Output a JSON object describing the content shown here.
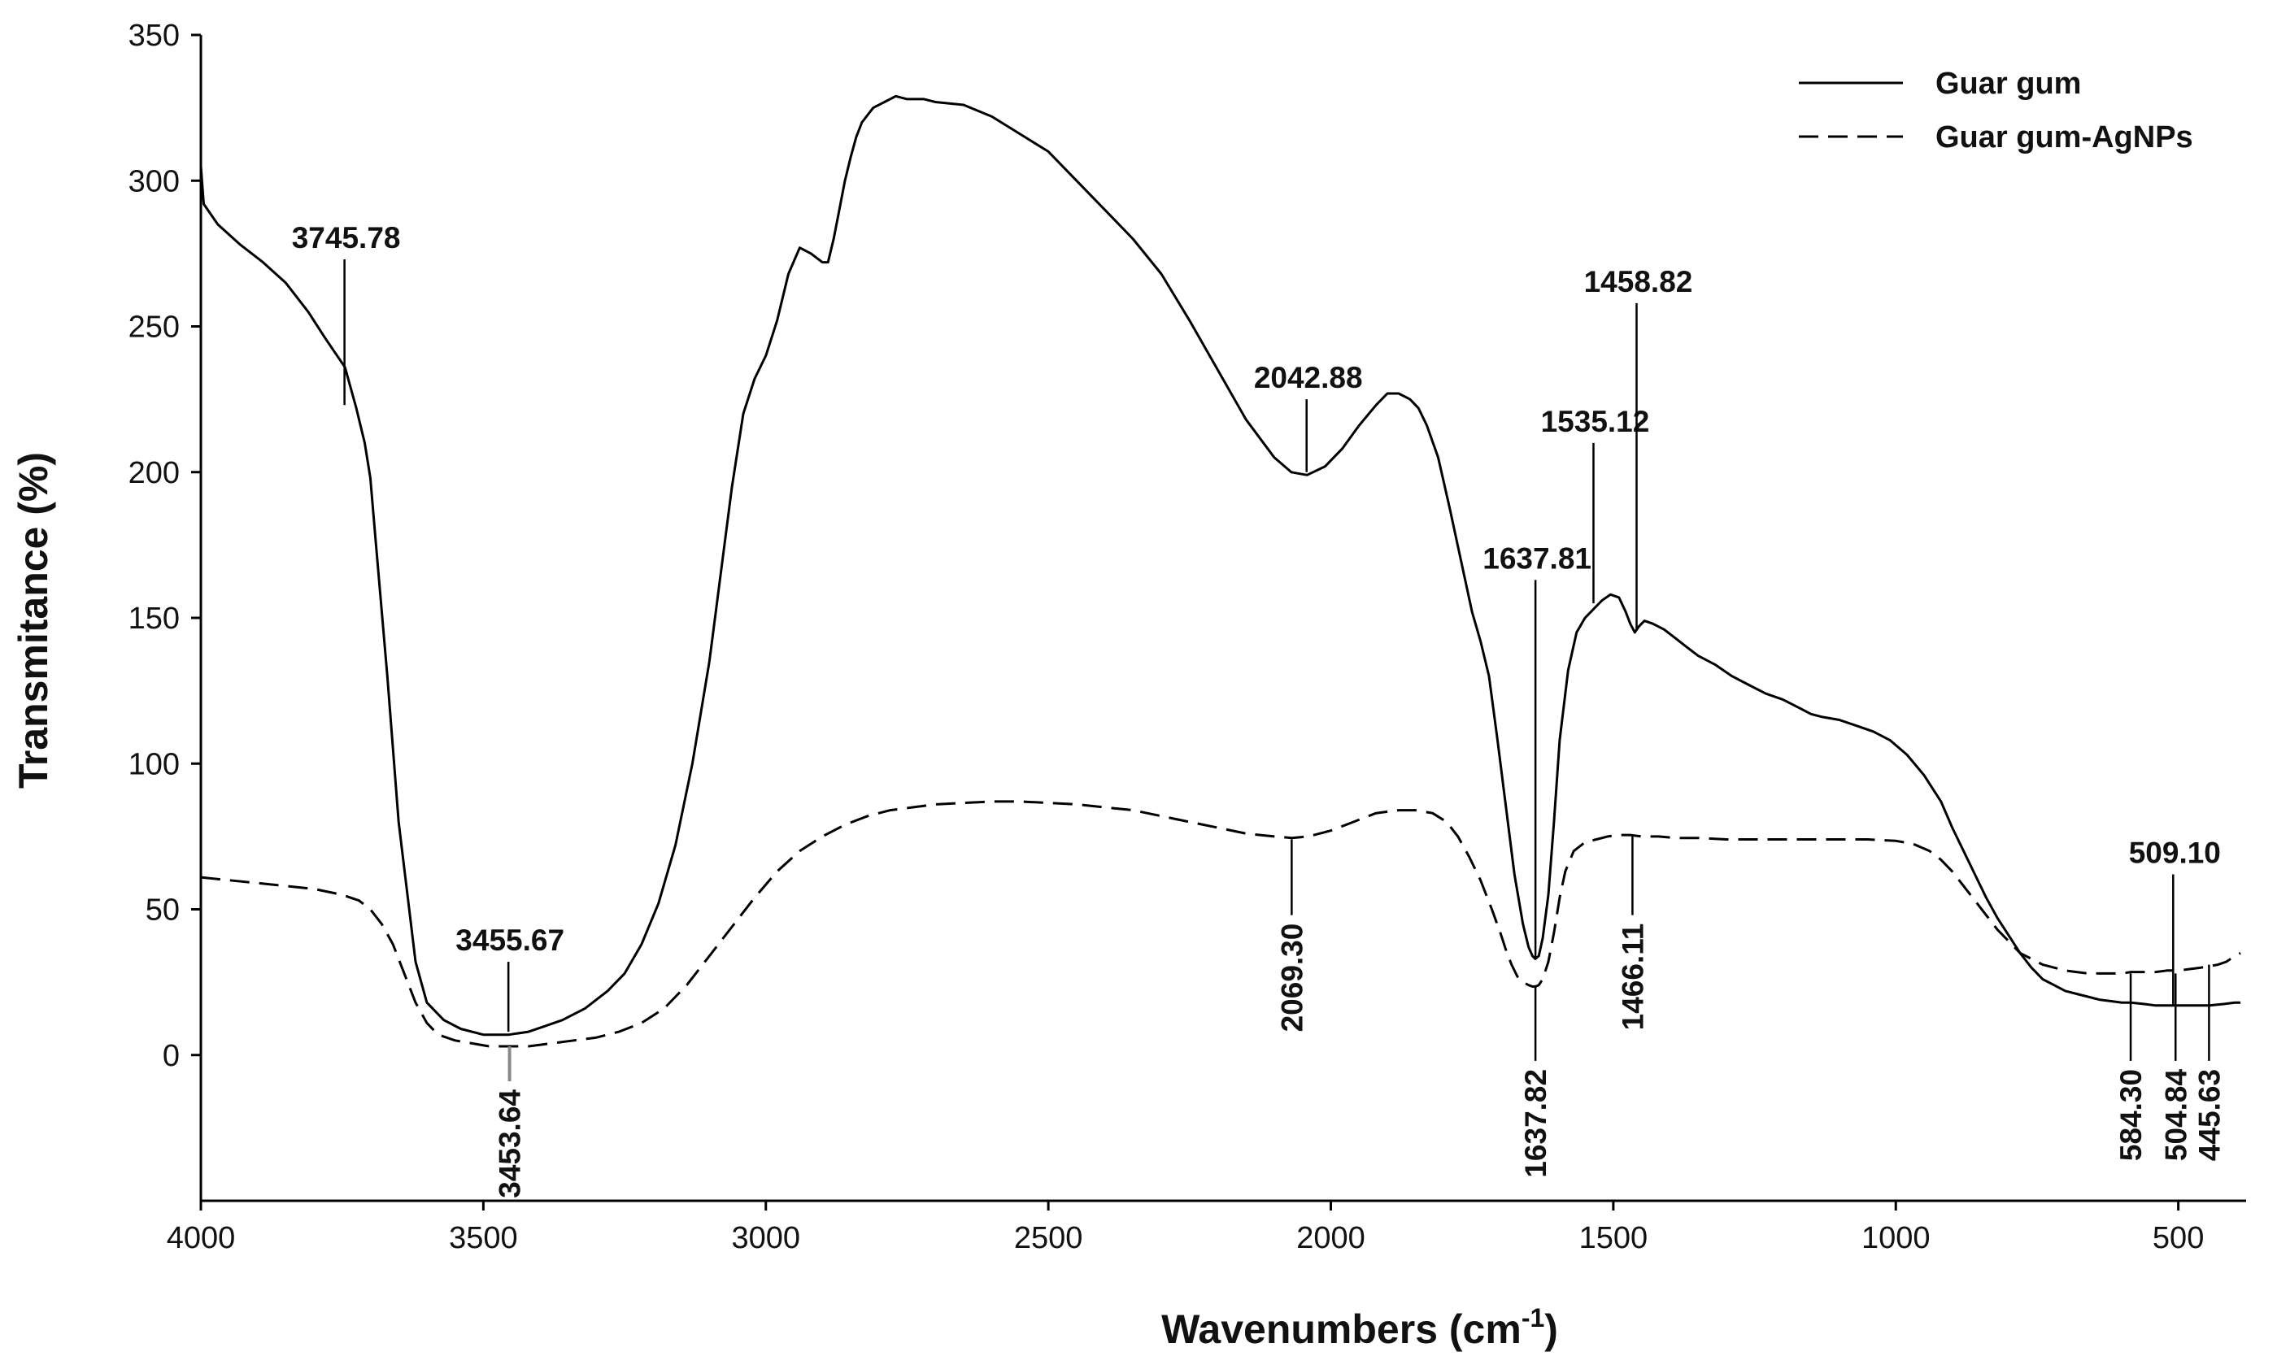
{
  "chart_data": {
    "type": "line",
    "title": "",
    "xlabel": "Wavenumbers (cm",
    "xlabel_sup": "-1",
    "xlabel_close": ")",
    "ylabel": "Transmitance (%)",
    "xlim": [
      4000,
      380
    ],
    "ylim": [
      -50,
      350
    ],
    "x_ticks": [
      4000,
      3500,
      3000,
      2500,
      2000,
      1500,
      1000,
      500
    ],
    "y_ticks": [
      0,
      50,
      100,
      150,
      200,
      250,
      300,
      350
    ],
    "grid": false,
    "legend_position": "top-right",
    "series": [
      {
        "name": "Guar gum",
        "style": "solid",
        "x": [
          4000,
          3995,
          3970,
          3930,
          3890,
          3850,
          3810,
          3780,
          3745,
          3725,
          3710,
          3700,
          3690,
          3670,
          3650,
          3620,
          3600,
          3570,
          3540,
          3500,
          3455,
          3420,
          3390,
          3360,
          3320,
          3280,
          3250,
          3220,
          3190,
          3160,
          3130,
          3100,
          3080,
          3060,
          3040,
          3020,
          3000,
          2980,
          2960,
          2940,
          2920,
          2900,
          2890,
          2880,
          2870,
          2860,
          2850,
          2840,
          2830,
          2810,
          2790,
          2770,
          2750,
          2720,
          2700,
          2650,
          2600,
          2550,
          2500,
          2450,
          2400,
          2350,
          2300,
          2250,
          2200,
          2150,
          2100,
          2070,
          2042,
          2010,
          1980,
          1950,
          1920,
          1900,
          1880,
          1860,
          1845,
          1830,
          1810,
          1790,
          1770,
          1750,
          1735,
          1720,
          1705,
          1690,
          1675,
          1660,
          1650,
          1643,
          1638,
          1632,
          1625,
          1615,
          1605,
          1595,
          1580,
          1565,
          1550,
          1535,
          1520,
          1505,
          1490,
          1478,
          1470,
          1462,
          1455,
          1445,
          1430,
          1410,
          1390,
          1370,
          1350,
          1320,
          1290,
          1260,
          1230,
          1200,
          1170,
          1150,
          1130,
          1100,
          1070,
          1040,
          1010,
          980,
          950,
          920,
          900,
          880,
          860,
          840,
          820,
          800,
          780,
          760,
          740,
          720,
          700,
          680,
          660,
          640,
          620,
          600,
          584,
          560,
          540,
          520,
          509,
          500,
          480,
          460,
          445,
          420,
          400,
          390
        ],
        "y": [
          305,
          292,
          285,
          278,
          272,
          265,
          255,
          246,
          236,
          222,
          210,
          198,
          175,
          130,
          80,
          32,
          18,
          12,
          9,
          7,
          7,
          8,
          10,
          12,
          16,
          22,
          28,
          38,
          52,
          72,
          100,
          135,
          165,
          195,
          220,
          232,
          240,
          252,
          268,
          277,
          275,
          272,
          272,
          280,
          290,
          300,
          308,
          315,
          320,
          325,
          327,
          329,
          328,
          328,
          327,
          326,
          322,
          316,
          310,
          300,
          290,
          280,
          268,
          252,
          235,
          218,
          205,
          200,
          199,
          202,
          208,
          216,
          223,
          227,
          227,
          225,
          222,
          216,
          205,
          188,
          170,
          152,
          142,
          130,
          108,
          85,
          62,
          45,
          37,
          34,
          33,
          34,
          40,
          55,
          80,
          108,
          132,
          145,
          150,
          153,
          156,
          158,
          157,
          152,
          148,
          145,
          147,
          149,
          148,
          146,
          143,
          140,
          137,
          134,
          130,
          127,
          124,
          122,
          119,
          117,
          116,
          115,
          113,
          111,
          108,
          103,
          96,
          87,
          78,
          70,
          62,
          54,
          47,
          41,
          35,
          30,
          26,
          24,
          22,
          21,
          20,
          19,
          18.5,
          18,
          18,
          17.5,
          17,
          17,
          17,
          17,
          17,
          17,
          17,
          17.5,
          18,
          18
        ]
      },
      {
        "name": "Guar gum-AgNPs",
        "style": "dashed",
        "x": [
          4000,
          3950,
          3900,
          3850,
          3800,
          3750,
          3720,
          3700,
          3680,
          3660,
          3640,
          3620,
          3600,
          3580,
          3550,
          3520,
          3490,
          3455,
          3420,
          3380,
          3340,
          3300,
          3260,
          3220,
          3180,
          3140,
          3100,
          3060,
          3020,
          2980,
          2940,
          2900,
          2860,
          2820,
          2780,
          2740,
          2700,
          2650,
          2600,
          2550,
          2500,
          2450,
          2400,
          2350,
          2300,
          2250,
          2200,
          2150,
          2100,
          2069,
          2040,
          2000,
          1960,
          1920,
          1880,
          1850,
          1820,
          1795,
          1775,
          1755,
          1735,
          1715,
          1700,
          1690,
          1680,
          1670,
          1660,
          1650,
          1643,
          1638,
          1632,
          1625,
          1615,
          1605,
          1595,
          1585,
          1570,
          1550,
          1530,
          1510,
          1490,
          1470,
          1450,
          1420,
          1390,
          1350,
          1300,
          1250,
          1200,
          1150,
          1100,
          1050,
          1000,
          970,
          940,
          920,
          900,
          880,
          860,
          840,
          820,
          800,
          780,
          760,
          740,
          720,
          700,
          680,
          660,
          640,
          620,
          600,
          584,
          560,
          540,
          520,
          509,
          500,
          480,
          460,
          445,
          430,
          415,
          400,
          390
        ],
        "y": [
          61,
          60,
          59,
          58,
          57,
          55,
          53,
          50,
          45,
          38,
          28,
          18,
          11,
          7,
          5,
          4,
          3,
          3,
          3,
          4,
          5,
          6,
          8,
          11,
          16,
          24,
          34,
          44,
          54,
          63,
          70,
          75,
          79,
          82,
          84,
          85,
          86,
          86.5,
          87,
          87,
          86.5,
          86,
          85,
          84,
          82,
          80,
          78,
          76,
          75,
          74.5,
          75,
          77,
          80,
          83,
          84,
          84,
          83,
          80,
          75,
          68,
          60,
          50,
          42,
          36,
          31,
          27,
          25,
          24,
          23.5,
          23.5,
          24,
          26,
          32,
          42,
          54,
          63,
          70,
          73,
          74,
          75,
          75.5,
          75.5,
          75,
          75,
          74.5,
          74.5,
          74,
          74,
          74,
          74,
          74,
          74,
          73.5,
          72.5,
          70,
          67,
          63,
          58,
          53,
          48,
          43,
          39,
          35,
          33,
          31,
          30,
          29,
          28.5,
          28,
          28,
          28,
          28,
          28.5,
          28.5,
          28.5,
          29,
          29,
          29,
          29.5,
          30,
          30.5,
          31,
          32,
          34,
          35
        ]
      }
    ],
    "annotations": [
      {
        "label": "3745.78",
        "series": "Guar gum",
        "x": 3745.78,
        "line_top": 273,
        "line_bottom": 223,
        "label_pos": "above"
      },
      {
        "label": "3455.67",
        "series": "Guar gum",
        "x": 3455.67,
        "line_top": 32,
        "line_bottom": 8,
        "label_pos": "above"
      },
      {
        "label": "2042.88",
        "series": "Guar gum",
        "x": 2042.88,
        "line_top": 225,
        "line_bottom": 200,
        "label_pos": "above"
      },
      {
        "label": "1637.81",
        "series": "Guar gum",
        "x": 1637.81,
        "line_top": 163,
        "line_bottom": 33,
        "label_pos": "above"
      },
      {
        "label": "1535.12",
        "series": "Guar gum",
        "x": 1535.12,
        "line_top": 210,
        "line_bottom": 155,
        "label_pos": "above"
      },
      {
        "label": "1458.82",
        "series": "Guar gum",
        "x": 1458.82,
        "line_top": 258,
        "line_bottom": 146,
        "label_pos": "above"
      },
      {
        "label": "509.10",
        "series": "Guar gum",
        "x": 509.1,
        "line_top": 62,
        "line_bottom": 17,
        "label_pos": "above"
      },
      {
        "label": "3453.64",
        "series": "Guar gum-AgNPs",
        "x": 3453.64,
        "line_top": 3,
        "line_bottom": -9,
        "label_pos": "below",
        "grey": true
      },
      {
        "label": "2069.30",
        "series": "Guar gum-AgNPs",
        "x": 2069.3,
        "line_top": 74,
        "line_bottom": 48,
        "label_pos": "below"
      },
      {
        "label": "1637.82",
        "series": "Guar gum-AgNPs",
        "x": 1637.82,
        "line_top": 24,
        "line_bottom": -2,
        "label_pos": "below"
      },
      {
        "label": "1466.11",
        "series": "Guar gum-AgNPs",
        "x": 1466.11,
        "line_top": 75,
        "line_bottom": 48,
        "label_pos": "below"
      },
      {
        "label": "584.30",
        "series": "Guar gum-AgNPs",
        "x": 584.3,
        "line_top": 28,
        "line_bottom": -2,
        "label_pos": "below"
      },
      {
        "label": "504.84",
        "series": "Guar gum-AgNPs",
        "x": 504.84,
        "line_top": 28,
        "line_bottom": -2,
        "label_pos": "below"
      },
      {
        "label": "445.63",
        "series": "Guar gum-AgNPs",
        "x": 445.63,
        "line_top": 31,
        "line_bottom": -2,
        "label_pos": "below"
      }
    ]
  }
}
